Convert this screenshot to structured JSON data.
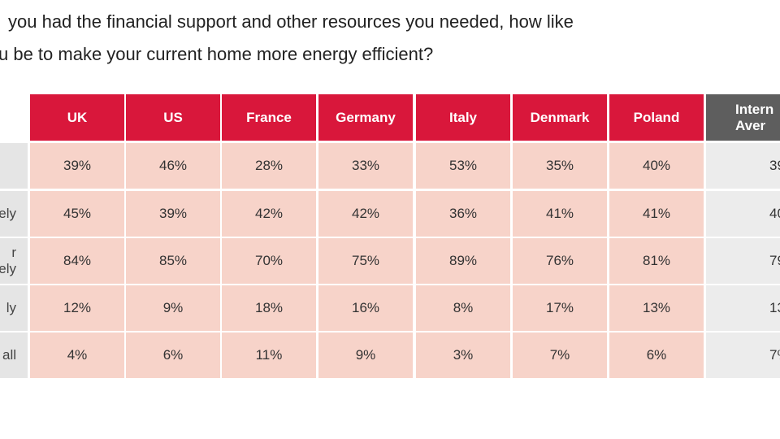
{
  "title": [
    "you had the financial support and other resources you needed, how like",
    "u be to make your current home more energy efficient?"
  ],
  "table": {
    "headers": [
      "UK",
      "US",
      "France",
      "Germany",
      "Italy",
      "Denmark",
      "Poland",
      "Intern\nAver"
    ],
    "rows": [
      {
        "label": "",
        "cells": [
          "39%",
          "46%",
          "28%",
          "33%",
          "53%",
          "35%",
          "40%",
          "39"
        ]
      },
      {
        "label": "ely",
        "cells": [
          "45%",
          "39%",
          "42%",
          "42%",
          "36%",
          "41%",
          "41%",
          "40"
        ]
      },
      {
        "label": "r\nely",
        "cells": [
          "84%",
          "85%",
          "70%",
          "75%",
          "89%",
          "76%",
          "81%",
          "79"
        ]
      },
      {
        "label": "ly",
        "cells": [
          "12%",
          "9%",
          "18%",
          "16%",
          "8%",
          "17%",
          "13%",
          "13"
        ]
      },
      {
        "label": "all",
        "cells": [
          "4%",
          "6%",
          "11%",
          "9%",
          "3%",
          "7%",
          "6%",
          "7%"
        ]
      }
    ]
  }
}
